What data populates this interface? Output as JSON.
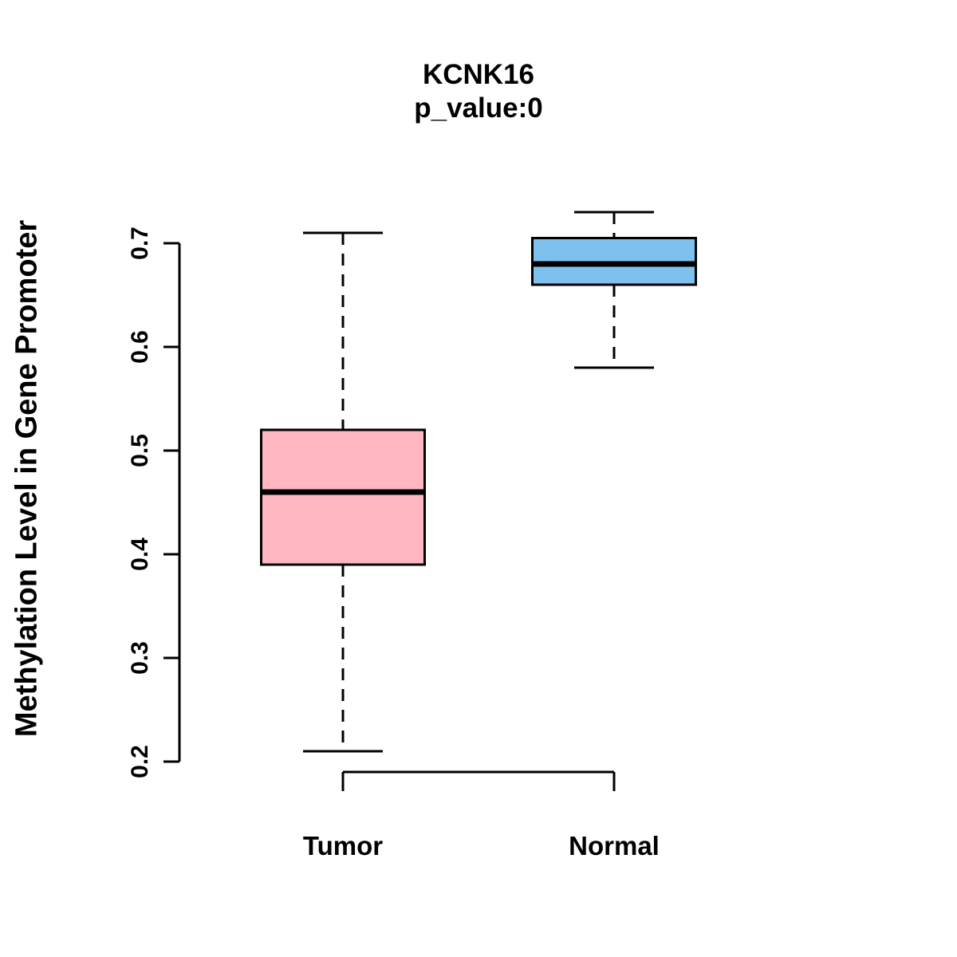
{
  "chart_data": {
    "type": "boxplot",
    "title": "KCNK16",
    "subtitle": "p_value:0",
    "ylabel": "Methylation Level in Gene Promoter",
    "xlabel": "",
    "categories": [
      "Tumor",
      "Normal"
    ],
    "series": [
      {
        "name": "Tumor",
        "color": "#FFB6C1",
        "low": 0.21,
        "q1": 0.39,
        "median": 0.46,
        "q3": 0.52,
        "high": 0.71
      },
      {
        "name": "Normal",
        "color": "#7EC0EE",
        "low": 0.58,
        "q1": 0.66,
        "median": 0.68,
        "q3": 0.705,
        "high": 0.73
      }
    ],
    "yticks": [
      0.2,
      0.3,
      0.4,
      0.5,
      0.6,
      0.7
    ],
    "ytick_labels": [
      "0.2",
      "0.3",
      "0.4",
      "0.5",
      "0.6",
      "0.7"
    ],
    "ylim": [
      0.18,
      0.74
    ],
    "grid": false,
    "legend": "none",
    "box_border_color": "#000000",
    "median_color": "#000000",
    "whisker_style": "dashed",
    "background_color": "#FFFFFF"
  }
}
